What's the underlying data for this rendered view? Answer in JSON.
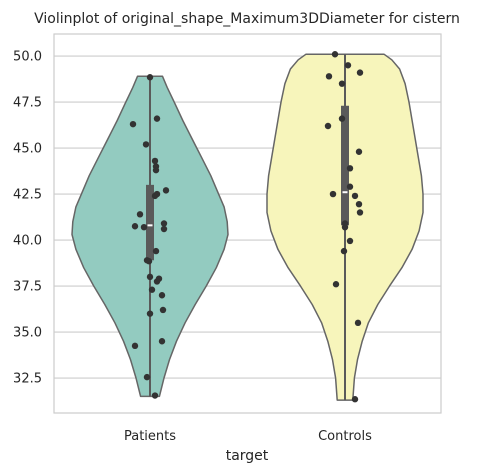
{
  "chart_data": {
    "type": "violin",
    "title": "Violinplot of original_shape_Maximum3DDiameter for cistern",
    "xlabel": "target",
    "ylabel": "",
    "ylim": [
      30.6,
      51.2
    ],
    "yticks": [
      32.5,
      35.0,
      37.5,
      40.0,
      42.5,
      45.0,
      47.5,
      50.0
    ],
    "ytick_labels": [
      "32.5",
      "35.0",
      "37.5",
      "40.0",
      "42.5",
      "45.0",
      "47.5",
      "50.0"
    ],
    "grid": "horizontal",
    "categories": [
      "Patients",
      "Controls"
    ],
    "series": [
      {
        "category": "Patients",
        "fill": "#93cbc0",
        "range": [
          31.5,
          48.9
        ],
        "quartiles": [
          38.9,
          40.8,
          43.0
        ],
        "density": [
          [
            31.5,
            0.12
          ],
          [
            32.5,
            0.18
          ],
          [
            33.5,
            0.25
          ],
          [
            34.5,
            0.34
          ],
          [
            35.5,
            0.45
          ],
          [
            36.5,
            0.58
          ],
          [
            37.5,
            0.72
          ],
          [
            38.5,
            0.85
          ],
          [
            39.5,
            0.95
          ],
          [
            40.3,
            1.0
          ],
          [
            41.0,
            0.99
          ],
          [
            41.8,
            0.95
          ],
          [
            42.5,
            0.88
          ],
          [
            43.5,
            0.78
          ],
          [
            44.5,
            0.66
          ],
          [
            45.5,
            0.54
          ],
          [
            46.5,
            0.42
          ],
          [
            47.5,
            0.31
          ],
          [
            48.3,
            0.22
          ],
          [
            48.9,
            0.16
          ]
        ],
        "points": [
          {
            "y": 48.85,
            "j": 0.0
          },
          {
            "y": 46.6,
            "j": 0.07
          },
          {
            "y": 46.3,
            "j": -0.17
          },
          {
            "y": 45.2,
            "j": -0.04
          },
          {
            "y": 44.3,
            "j": 0.05
          },
          {
            "y": 44.0,
            "j": 0.06
          },
          {
            "y": 43.8,
            "j": 0.06
          },
          {
            "y": 42.7,
            "j": 0.16
          },
          {
            "y": 42.5,
            "j": 0.07
          },
          {
            "y": 42.4,
            "j": 0.05
          },
          {
            "y": 41.4,
            "j": -0.1
          },
          {
            "y": 40.9,
            "j": 0.14
          },
          {
            "y": 40.75,
            "j": -0.15
          },
          {
            "y": 40.7,
            "j": -0.06
          },
          {
            "y": 40.6,
            "j": 0.14
          },
          {
            "y": 39.4,
            "j": 0.06
          },
          {
            "y": 38.9,
            "j": -0.03
          },
          {
            "y": 38.85,
            "j": -0.01
          },
          {
            "y": 38.0,
            "j": 0.0
          },
          {
            "y": 37.9,
            "j": 0.09
          },
          {
            "y": 37.75,
            "j": 0.07
          },
          {
            "y": 37.3,
            "j": 0.02
          },
          {
            "y": 37.0,
            "j": 0.12
          },
          {
            "y": 36.2,
            "j": 0.13
          },
          {
            "y": 36.0,
            "j": 0.0
          },
          {
            "y": 34.5,
            "j": 0.12
          },
          {
            "y": 34.25,
            "j": -0.15
          },
          {
            "y": 32.55,
            "j": -0.03
          },
          {
            "y": 31.55,
            "j": 0.05
          }
        ]
      },
      {
        "category": "Controls",
        "fill": "#f7f5bb",
        "range": [
          31.3,
          50.1
        ],
        "quartiles": [
          40.8,
          42.6,
          47.3
        ],
        "density": [
          [
            31.3,
            0.1
          ],
          [
            32.5,
            0.12
          ],
          [
            33.5,
            0.16
          ],
          [
            34.5,
            0.22
          ],
          [
            35.5,
            0.3
          ],
          [
            36.5,
            0.42
          ],
          [
            37.5,
            0.57
          ],
          [
            38.5,
            0.73
          ],
          [
            39.5,
            0.86
          ],
          [
            40.5,
            0.95
          ],
          [
            41.5,
            1.0
          ],
          [
            42.5,
            1.0
          ],
          [
            43.5,
            0.98
          ],
          [
            44.5,
            0.94
          ],
          [
            45.5,
            0.9
          ],
          [
            46.5,
            0.86
          ],
          [
            47.5,
            0.82
          ],
          [
            48.5,
            0.77
          ],
          [
            49.3,
            0.7
          ],
          [
            49.8,
            0.6
          ],
          [
            50.1,
            0.5
          ]
        ],
        "points": [
          {
            "y": 50.1,
            "j": -0.1
          },
          {
            "y": 49.5,
            "j": 0.03
          },
          {
            "y": 49.1,
            "j": 0.15
          },
          {
            "y": 48.9,
            "j": -0.16
          },
          {
            "y": 48.5,
            "j": -0.03
          },
          {
            "y": 46.6,
            "j": -0.03
          },
          {
            "y": 46.2,
            "j": -0.17
          },
          {
            "y": 44.8,
            "j": 0.14
          },
          {
            "y": 43.9,
            "j": 0.05
          },
          {
            "y": 42.9,
            "j": 0.05
          },
          {
            "y": 42.5,
            "j": -0.12
          },
          {
            "y": 42.4,
            "j": 0.1
          },
          {
            "y": 41.95,
            "j": 0.14
          },
          {
            "y": 41.5,
            "j": 0.15
          },
          {
            "y": 40.9,
            "j": 0.0
          },
          {
            "y": 40.7,
            "j": 0.0
          },
          {
            "y": 39.95,
            "j": 0.05
          },
          {
            "y": 39.4,
            "j": -0.01
          },
          {
            "y": 37.6,
            "j": -0.09
          },
          {
            "y": 35.5,
            "j": 0.13
          },
          {
            "y": 31.35,
            "j": 0.1
          }
        ]
      }
    ]
  }
}
